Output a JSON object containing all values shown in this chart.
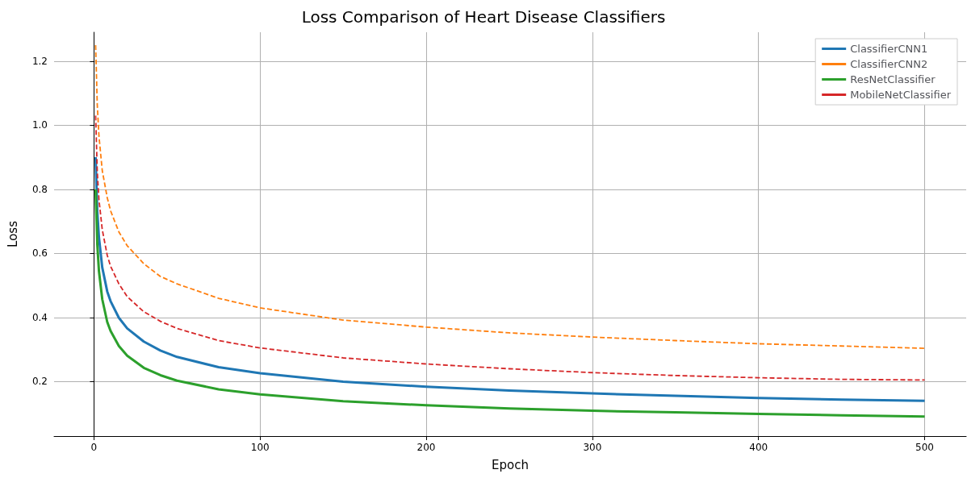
{
  "chart_data": {
    "type": "line",
    "title": "Loss Comparison of Heart Disease Classifiers",
    "xlabel": "Epoch",
    "ylabel": "Loss",
    "x": [
      1,
      2,
      3,
      5,
      8,
      10,
      15,
      20,
      30,
      40,
      50,
      75,
      100,
      150,
      200,
      250,
      300,
      350,
      400,
      450,
      500
    ],
    "series": [
      {
        "name": "ClassifierCNN1",
        "color": "#1f77b4",
        "line_style": "solid",
        "values": [
          0.9,
          0.731,
          0.65,
          0.556,
          0.481,
          0.451,
          0.399,
          0.366,
          0.325,
          0.297,
          0.277,
          0.245,
          0.226,
          0.2,
          0.184,
          0.172,
          0.163,
          0.156,
          0.149,
          0.144,
          0.14
        ]
      },
      {
        "name": "ClassifierCNN2",
        "color": "#ff7f0e",
        "line_style": "dashed",
        "values": [
          1.25,
          1.064,
          0.967,
          0.858,
          0.774,
          0.733,
          0.667,
          0.624,
          0.568,
          0.528,
          0.505,
          0.46,
          0.43,
          0.392,
          0.37,
          0.352,
          0.339,
          0.328,
          0.318,
          0.311,
          0.304
        ]
      },
      {
        "name": "ResNetClassifier",
        "color": "#2ca02c",
        "line_style": "solid",
        "values": [
          0.8,
          0.629,
          0.545,
          0.457,
          0.386,
          0.358,
          0.311,
          0.281,
          0.243,
          0.22,
          0.203,
          0.176,
          0.16,
          0.139,
          0.126,
          0.116,
          0.109,
          0.104,
          0.099,
          0.095,
          0.091
        ]
      },
      {
        "name": "MobileNetClassifier",
        "color": "#d62728",
        "line_style": "dashed",
        "values": [
          1.03,
          0.855,
          0.768,
          0.674,
          0.594,
          0.56,
          0.505,
          0.465,
          0.418,
          0.388,
          0.366,
          0.328,
          0.305,
          0.274,
          0.255,
          0.24,
          0.228,
          0.219,
          0.212,
          0.207,
          0.205
        ]
      }
    ],
    "xlim": [
      -24,
      525
    ],
    "xticks": [
      0,
      100,
      200,
      300,
      400,
      500
    ],
    "ylim": [
      0.03,
      1.29
    ],
    "yticks": [
      0.2,
      0.4,
      0.6,
      0.8,
      {
        "value": 1,
        "label": "1.0"
      },
      1.2
    ],
    "grid": true,
    "legend": "top right",
    "marker": "none"
  }
}
